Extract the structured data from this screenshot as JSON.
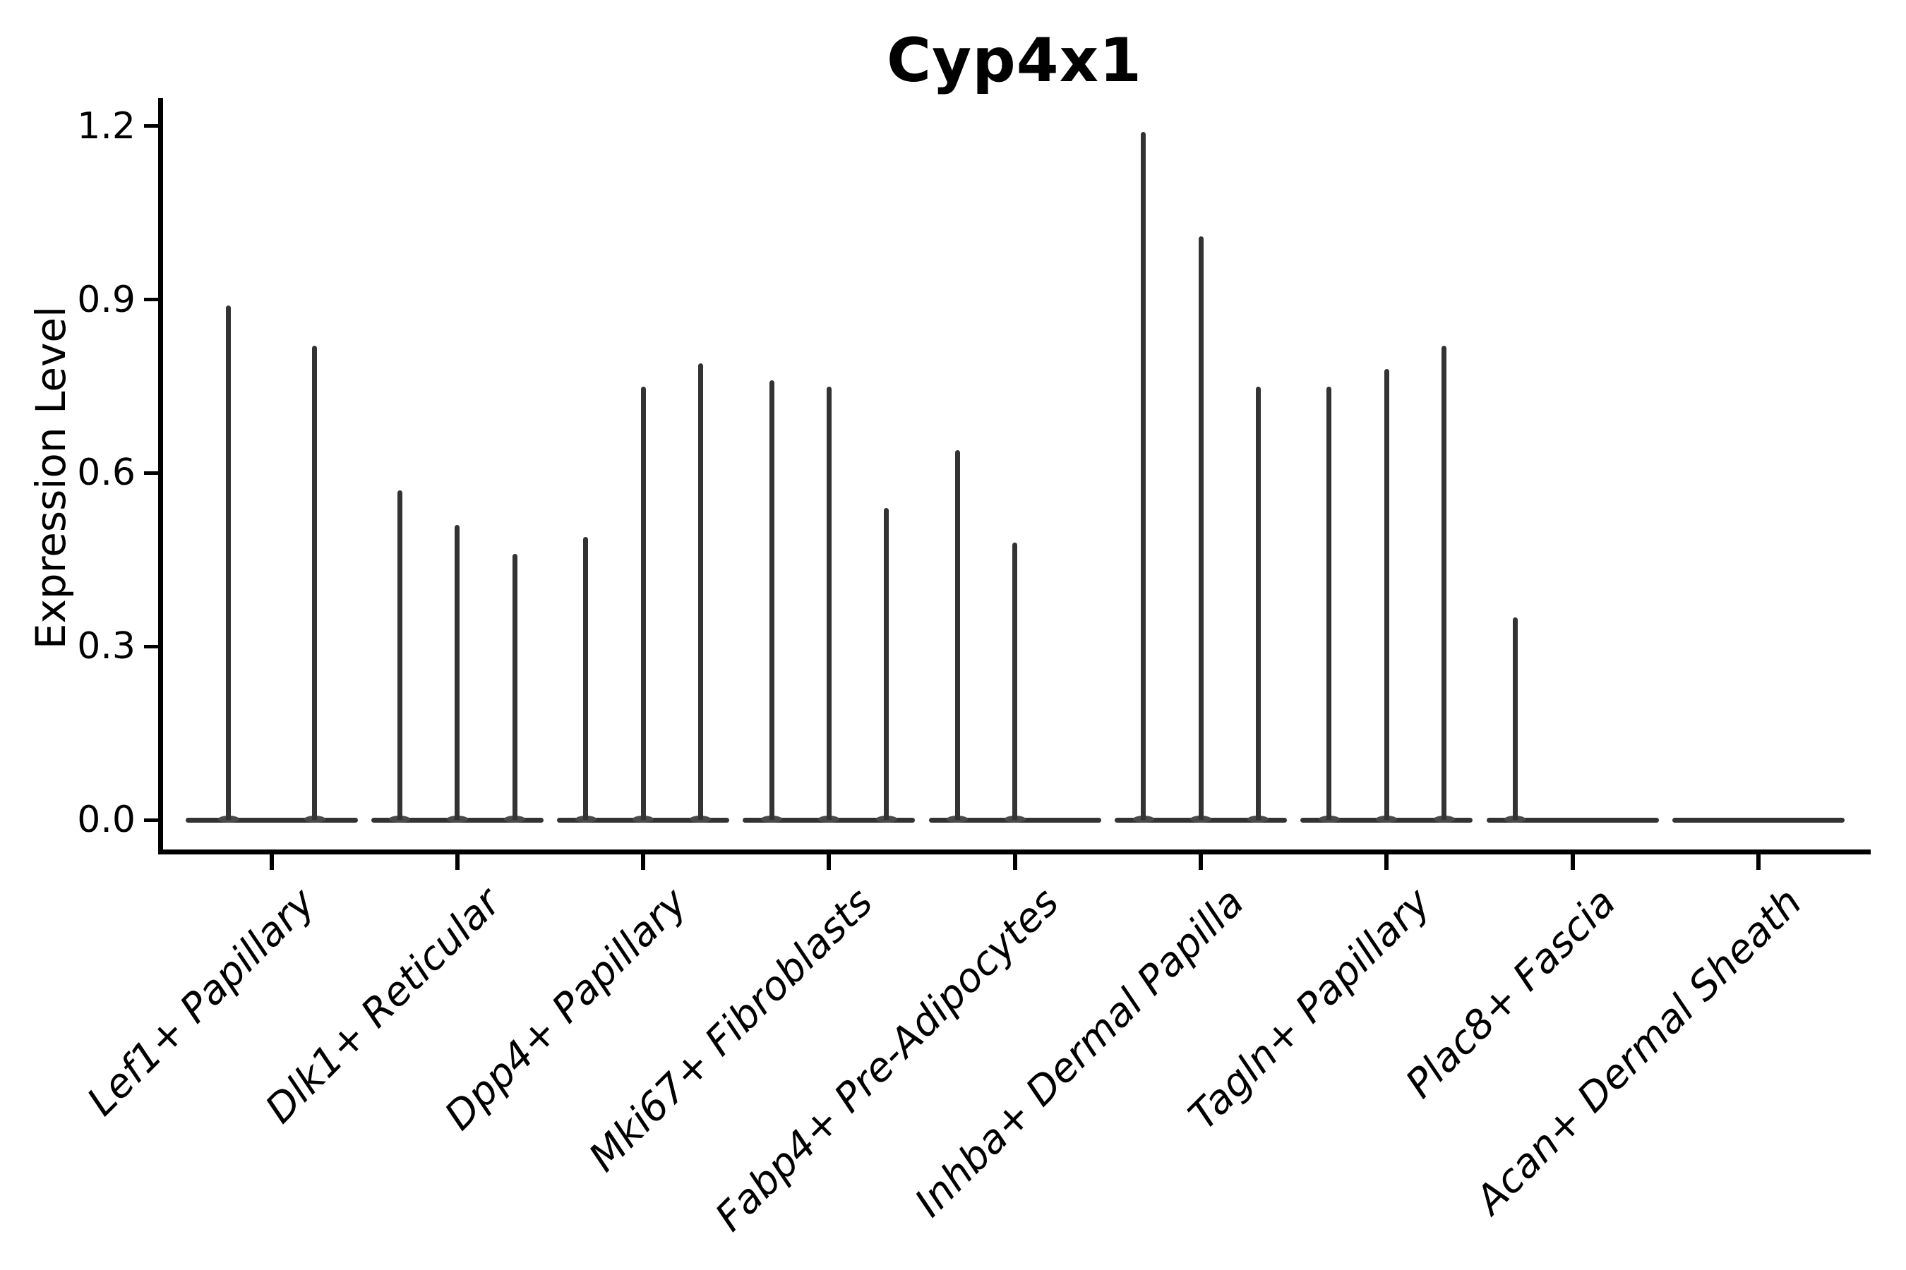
{
  "title": "Cyp4x1",
  "chart_data": {
    "type": "violin",
    "title": "Cyp4x1",
    "subtitle": "",
    "xlabel": "",
    "ylabel": "Expression Level",
    "ytick_labels": [
      "0.0",
      "0.3",
      "0.6",
      "0.9",
      "1.2"
    ],
    "ytick_values": [
      0.0,
      0.3,
      0.6,
      0.9,
      1.2
    ],
    "ylim": [
      -0.06,
      1.25
    ],
    "grid": false,
    "legend_position": "none",
    "violin_color": "#333333",
    "axis_color": "#000000",
    "background_color": "#ffffff",
    "categories": [
      {
        "label": "Lef1+ Papillary",
        "violin_max": [
          0.89,
          0.82
        ]
      },
      {
        "label": "Dlk1+ Reticular",
        "violin_max": [
          0.57,
          0.51,
          0.46
        ]
      },
      {
        "label": "Dpp4+ Papillary",
        "violin_max": [
          0.49,
          0.75,
          0.79
        ]
      },
      {
        "label": "Mki67+ Fibroblasts",
        "violin_max": [
          0.76,
          0.75,
          0.54
        ]
      },
      {
        "label": "Fabp4+ Pre-Adipocytes",
        "violin_max": [
          0.64,
          0.48,
          0
        ]
      },
      {
        "label": "Inhba+ Dermal Papilla",
        "violin_max": [
          1.19,
          1.01,
          0.75
        ]
      },
      {
        "label": "Tagln+ Papillary",
        "violin_max": [
          0.75,
          0.78,
          0.82
        ]
      },
      {
        "label": "Plac8+ Fascia",
        "violin_max": [
          0.35,
          0,
          0
        ]
      },
      {
        "label": "Acan+ Dermal Sheath",
        "violin_max": [
          0,
          0,
          0
        ]
      }
    ]
  }
}
